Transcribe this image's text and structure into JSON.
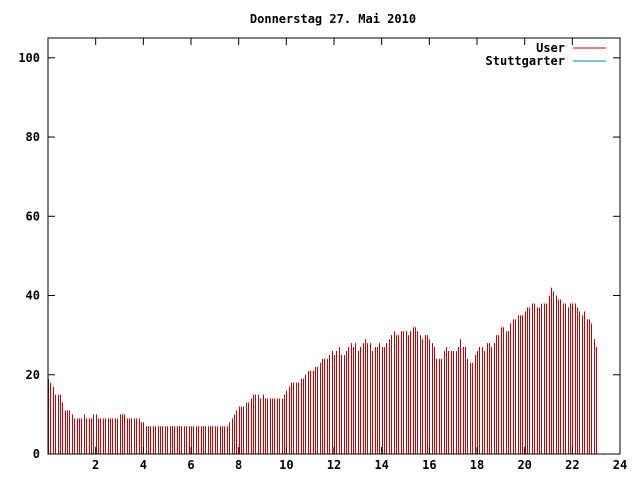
{
  "chart_data": {
    "type": "bar",
    "title": "Donnerstag 27. Mai 2010",
    "xlabel": "",
    "ylabel": "",
    "xlim": [
      0,
      24
    ],
    "ylim": [
      0,
      105
    ],
    "x_ticks": [
      "2",
      "4",
      "6",
      "8",
      "10",
      "12",
      "14",
      "16",
      "18",
      "20",
      "22",
      "24"
    ],
    "y_ticks": [
      "0",
      "20",
      "40",
      "60",
      "80",
      "100"
    ],
    "x_tick_values": [
      2,
      4,
      6,
      8,
      10,
      12,
      14,
      16,
      18,
      20,
      22,
      24
    ],
    "y_tick_values": [
      0,
      20,
      40,
      60,
      80,
      100
    ],
    "grid": false,
    "legend_position": "top-right",
    "bin_width_hours": 0.1,
    "series": [
      {
        "name": "User",
        "color": "#cc0000",
        "values": [
          19,
          18,
          17,
          15,
          15,
          15,
          13,
          11,
          11,
          11,
          10,
          9,
          9,
          9,
          9,
          10,
          9,
          9,
          9,
          10,
          10,
          9,
          9,
          9,
          9,
          9,
          9,
          9,
          9,
          9,
          10,
          10,
          10,
          9,
          9,
          9,
          9,
          9,
          9,
          8,
          8,
          7,
          7,
          7,
          7,
          7,
          7,
          7,
          7,
          7,
          7,
          7,
          7,
          7,
          7,
          7,
          7,
          7,
          7,
          7,
          7,
          7,
          7,
          7,
          7,
          7,
          7,
          7,
          7,
          7,
          7,
          7,
          7,
          7,
          7,
          7,
          8,
          9,
          10,
          11,
          12,
          12,
          12,
          13,
          13,
          14,
          15,
          15,
          15,
          14,
          15,
          14,
          14,
          14,
          14,
          14,
          14,
          14,
          14,
          15,
          16,
          17,
          18,
          18,
          18,
          18,
          19,
          19,
          20,
          21,
          21,
          21,
          22,
          22,
          23,
          24,
          24,
          24,
          25,
          26,
          25,
          26,
          27,
          25,
          25,
          26,
          27,
          28,
          27,
          28,
          26,
          27,
          28,
          29,
          28,
          28,
          26,
          27,
          27,
          28,
          27,
          27,
          28,
          29,
          30,
          31,
          30,
          30,
          31,
          31,
          31,
          30,
          31,
          32,
          32,
          31,
          30,
          29,
          30,
          30,
          29,
          28,
          27,
          24,
          24,
          24,
          26,
          27,
          26,
          26,
          26,
          26,
          27,
          29,
          27,
          27,
          24,
          23,
          23,
          25,
          26,
          27,
          27,
          26,
          28,
          28,
          27,
          28,
          30,
          30,
          32,
          32,
          31,
          31,
          33,
          34,
          34,
          35,
          35,
          35,
          36,
          37,
          37,
          38,
          38,
          37,
          37,
          38,
          38,
          38,
          40,
          42,
          41,
          40,
          39,
          39,
          38,
          38,
          37,
          38,
          38,
          38,
          37,
          36,
          35,
          36,
          34,
          34,
          33,
          29,
          27
        ]
      },
      {
        "name": "Stuttgarter",
        "color": "#008b8b",
        "values": []
      }
    ]
  }
}
